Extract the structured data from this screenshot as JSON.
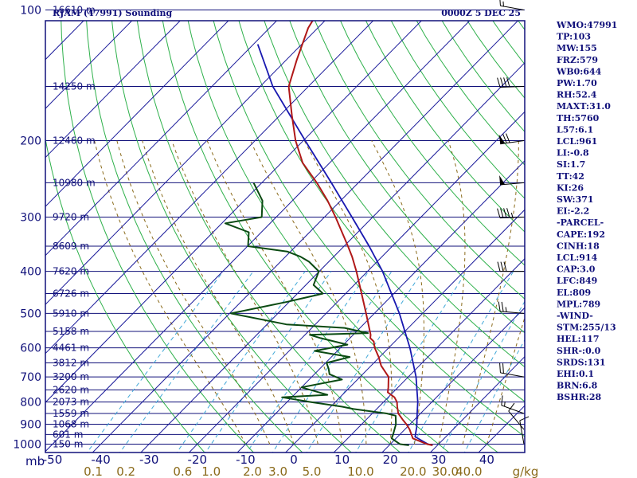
{
  "header": {
    "station": "RJAM (47991) Sounding",
    "time": "0000Z  5 DEC 25"
  },
  "indices": [
    "WMO:47991",
    "TP:103",
    "MW:155",
    "FRZ:579",
    "WB0:644",
    "PW:1.70",
    "RH:52.4",
    "MAXT:31.0",
    "TH:5760",
    "L57:6.1",
    "LCL:961",
    "LI:-0.8",
    "SI:1.7",
    "TT:42",
    "KI:26",
    "SW:371",
    "EI:-2.2",
    "-PARCEL-",
    "CAPE:192",
    "CINH:18",
    "LCL:914",
    "CAP:3.0",
    "LFC:849",
    "EL:809",
    "MPL:789",
    "-WIND-",
    "STM:255/13",
    "HEL:117",
    "SHR-:0.0",
    "SRDS:131",
    "EHI:0.1",
    "BRN:6.8",
    "BSHR:28"
  ],
  "colors": {
    "frame": "#10107a",
    "isobar": "#10107a",
    "isotherm": "#1a1a9a",
    "dry_adiabat": "#2db04a",
    "moist_adiabat": "#8a6a1a",
    "mixing_ratio": "#40a8d8",
    "temperature": "#b01818",
    "dewpoint": "#0a4a12",
    "parcel": "#1818b0"
  },
  "chart_data": {
    "type": "skew-t log-p sounding",
    "title": "RJAM (47991) Sounding",
    "valid_time": "0000Z  5 DEC 25",
    "y_axis_label": "mb",
    "x_axis_label": "g/kg",
    "pressure_range": [
      1000,
      100
    ],
    "temp_skew_C_per_ln_p": 38.5,
    "pressure_levels": [
      {
        "p": 100,
        "label": "100",
        "height_label": "16610 m"
      },
      {
        "p": 150,
        "label": "",
        "height_label": "14250 m"
      },
      {
        "p": 200,
        "label": "200",
        "height_label": "12460 m"
      },
      {
        "p": 250,
        "label": "",
        "height_label": "10980 m"
      },
      {
        "p": 300,
        "label": "300",
        "height_label": "9720 m"
      },
      {
        "p": 350,
        "label": "",
        "height_label": "8609 m"
      },
      {
        "p": 400,
        "label": "400",
        "height_label": "7620 m"
      },
      {
        "p": 450,
        "label": "",
        "height_label": "6726 m"
      },
      {
        "p": 500,
        "label": "500",
        "height_label": "5910 m"
      },
      {
        "p": 550,
        "label": "",
        "height_label": "5158 m"
      },
      {
        "p": 600,
        "label": "600",
        "height_label": "4461 m"
      },
      {
        "p": 650,
        "label": "",
        "height_label": "3812 m"
      },
      {
        "p": 700,
        "label": "700",
        "height_label": "3200 m"
      },
      {
        "p": 750,
        "label": "",
        "height_label": "2620 m"
      },
      {
        "p": 800,
        "label": "800",
        "height_label": "2073 m"
      },
      {
        "p": 850,
        "label": "",
        "height_label": "1559 m"
      },
      {
        "p": 900,
        "label": "900",
        "height_label": "1068 m"
      },
      {
        "p": 950,
        "label": "",
        "height_label": "601 m"
      },
      {
        "p": 1000,
        "label": "1000",
        "height_label": "150 m"
      }
    ],
    "temperature_ticks": [
      "-50",
      "-40",
      "-30",
      "-20",
      "-10",
      "0",
      "10",
      "20",
      "30",
      "40"
    ],
    "mixing_ratio_ticks": [
      "0.1",
      "0.2",
      "0.6",
      "1.0",
      "2.0",
      "3.0",
      "5.0",
      "10.0",
      "20.0",
      "30.0",
      "40.0"
    ],
    "temperature_profile_C": [
      {
        "p": 1006,
        "t": 29.0
      },
      {
        "p": 1000,
        "t": 27.6
      },
      {
        "p": 970,
        "t": 23.5
      },
      {
        "p": 950,
        "t": 22.4
      },
      {
        "p": 925,
        "t": 21.0
      },
      {
        "p": 900,
        "t": 19.3
      },
      {
        "p": 880,
        "t": 17.7
      },
      {
        "p": 850,
        "t": 15.4
      },
      {
        "p": 820,
        "t": 13.8
      },
      {
        "p": 800,
        "t": 12.8
      },
      {
        "p": 780,
        "t": 11.3
      },
      {
        "p": 760,
        "t": 8.9
      },
      {
        "p": 740,
        "t": 8.0
      },
      {
        "p": 700,
        "t": 5.9
      },
      {
        "p": 660,
        "t": 2.1
      },
      {
        "p": 630,
        "t": -0.2
      },
      {
        "p": 600,
        "t": -2.9
      },
      {
        "p": 580,
        "t": -4.4
      },
      {
        "p": 570,
        "t": -5.8
      },
      {
        "p": 560,
        "t": -6.4
      },
      {
        "p": 500,
        "t": -11.7
      },
      {
        "p": 450,
        "t": -16.7
      },
      {
        "p": 400,
        "t": -22.3
      },
      {
        "p": 370,
        "t": -26.2
      },
      {
        "p": 350,
        "t": -29.2
      },
      {
        "p": 300,
        "t": -37.7
      },
      {
        "p": 275,
        "t": -42.7
      },
      {
        "p": 250,
        "t": -48.6
      },
      {
        "p": 225,
        "t": -55.6
      },
      {
        "p": 200,
        "t": -61.6
      },
      {
        "p": 175,
        "t": -67.5
      },
      {
        "p": 150,
        "t": -74.1
      },
      {
        "p": 130,
        "t": -77.9
      },
      {
        "p": 110,
        "t": -82.0
      },
      {
        "p": 100,
        "t": -83.4
      }
    ],
    "dewpoint_profile_C": [
      {
        "p": 1006,
        "t": 24.1
      },
      {
        "p": 1000,
        "t": 22.0
      },
      {
        "p": 970,
        "t": 19.1
      },
      {
        "p": 950,
        "t": 18.6
      },
      {
        "p": 900,
        "t": 17.1
      },
      {
        "p": 860,
        "t": 15.3
      },
      {
        "p": 850,
        "t": 13.0
      },
      {
        "p": 830,
        "t": 5.2
      },
      {
        "p": 820,
        "t": 2.4
      },
      {
        "p": 800,
        "t": -5.0
      },
      {
        "p": 780,
        "t": -12.0
      },
      {
        "p": 770,
        "t": -3.1
      },
      {
        "p": 740,
        "t": -10.0
      },
      {
        "p": 710,
        "t": -3.2
      },
      {
        "p": 690,
        "t": -6.9
      },
      {
        "p": 670,
        "t": -8.2
      },
      {
        "p": 650,
        "t": -9.8
      },
      {
        "p": 630,
        "t": -6.2
      },
      {
        "p": 610,
        "t": -14.7
      },
      {
        "p": 590,
        "t": -9.2
      },
      {
        "p": 570,
        "t": -16.1
      },
      {
        "p": 560,
        "t": -19.0
      },
      {
        "p": 555,
        "t": -7.3
      },
      {
        "p": 540,
        "t": -13.2
      },
      {
        "p": 530,
        "t": -26.0
      },
      {
        "p": 500,
        "t": -39.7
      },
      {
        "p": 470,
        "t": -30.4
      },
      {
        "p": 450,
        "t": -24.7
      },
      {
        "p": 430,
        "t": -28.4
      },
      {
        "p": 400,
        "t": -30.1
      },
      {
        "p": 380,
        "t": -34.1
      },
      {
        "p": 370,
        "t": -36.9
      },
      {
        "p": 360,
        "t": -40.7
      },
      {
        "p": 350,
        "t": -49.9
      },
      {
        "p": 325,
        "t": -52.6
      },
      {
        "p": 310,
        "t": -59.3
      },
      {
        "p": 300,
        "t": -53.0
      },
      {
        "p": 275,
        "t": -56.2
      },
      {
        "p": 250,
        "t": -61.7
      }
    ],
    "parcel_profile_C": [
      {
        "p": 1006,
        "t": 29.0
      },
      {
        "p": 1000,
        "t": 27.8
      },
      {
        "p": 975,
        "t": 25.1
      },
      {
        "p": 961,
        "t": 23.6
      },
      {
        "p": 914,
        "t": 22.0
      },
      {
        "p": 850,
        "t": 19.3
      },
      {
        "p": 800,
        "t": 17.1
      },
      {
        "p": 700,
        "t": 11.6
      },
      {
        "p": 600,
        "t": 4.4
      },
      {
        "p": 500,
        "t": -4.8
      },
      {
        "p": 400,
        "t": -16.9
      },
      {
        "p": 350,
        "t": -24.8
      },
      {
        "p": 300,
        "t": -34.3
      },
      {
        "p": 250,
        "t": -45.6
      },
      {
        "p": 200,
        "t": -59.6
      },
      {
        "p": 150,
        "t": -77.4
      },
      {
        "p": 120,
        "t": -89.1
      }
    ],
    "wind_barbs": [
      {
        "p": 1000,
        "dir": 350,
        "speed_kt": 10
      },
      {
        "p": 925,
        "dir": 320,
        "speed_kt": 10
      },
      {
        "p": 850,
        "dir": 290,
        "speed_kt": 15
      },
      {
        "p": 700,
        "dir": 280,
        "speed_kt": 20
      },
      {
        "p": 500,
        "dir": 275,
        "speed_kt": 25
      },
      {
        "p": 400,
        "dir": 270,
        "speed_kt": 30
      },
      {
        "p": 300,
        "dir": 268,
        "speed_kt": 45
      },
      {
        "p": 250,
        "dir": 265,
        "speed_kt": 50
      },
      {
        "p": 200,
        "dir": 262,
        "speed_kt": 70
      },
      {
        "p": 150,
        "dir": 268,
        "speed_kt": 40
      },
      {
        "p": 100,
        "dir": 280,
        "speed_kt": 15
      }
    ]
  }
}
